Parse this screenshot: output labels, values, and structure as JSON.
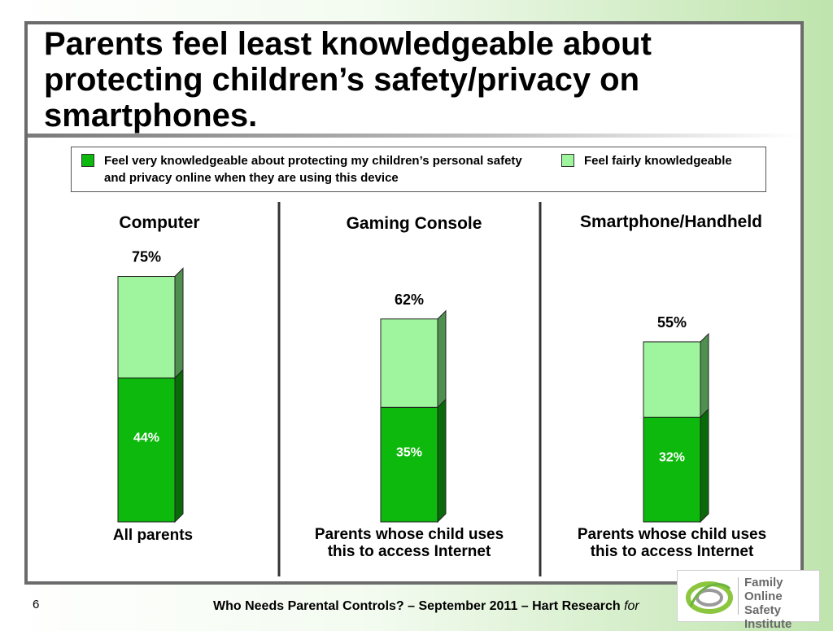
{
  "slide": {
    "title": "Parents feel least knowledgeable about protecting children’s safety/privacy on smartphones.",
    "page_number": "6",
    "footer": "Who Needs Parental Controls? – September 2011 – Hart Research",
    "footer_suffix": "for",
    "logo_text": [
      "Family",
      "Online Safety",
      "Institute"
    ]
  },
  "colors": {
    "very_knowledgeable": "#0db90d",
    "fairly_knowledgeable": "#9ef59e",
    "very_side": "#0a6a0a",
    "fairly_side": "#4f8f4f"
  },
  "chart_data": {
    "type": "bar",
    "stacked": true,
    "categories": [
      "Computer",
      "Gaming Console",
      "Smartphone/Handheld"
    ],
    "category_notes": [
      "All parents",
      "Parents whose child uses this to access Internet",
      "Parents whose child uses this to access Internet"
    ],
    "series": [
      {
        "name": "Feel very knowledgeable about protecting my children’s personal safety and privacy online when they are using this device",
        "values": [
          44,
          35,
          32
        ],
        "labels": [
          "44%",
          "35%",
          "32%"
        ]
      },
      {
        "name": "Feel fairly knowledgeable",
        "values": [
          31,
          27,
          23
        ]
      }
    ],
    "totals": [
      75,
      62,
      55
    ],
    "total_labels": [
      "75%",
      "62%",
      "55%"
    ],
    "ylim": [
      0,
      100
    ],
    "legend": "top"
  }
}
